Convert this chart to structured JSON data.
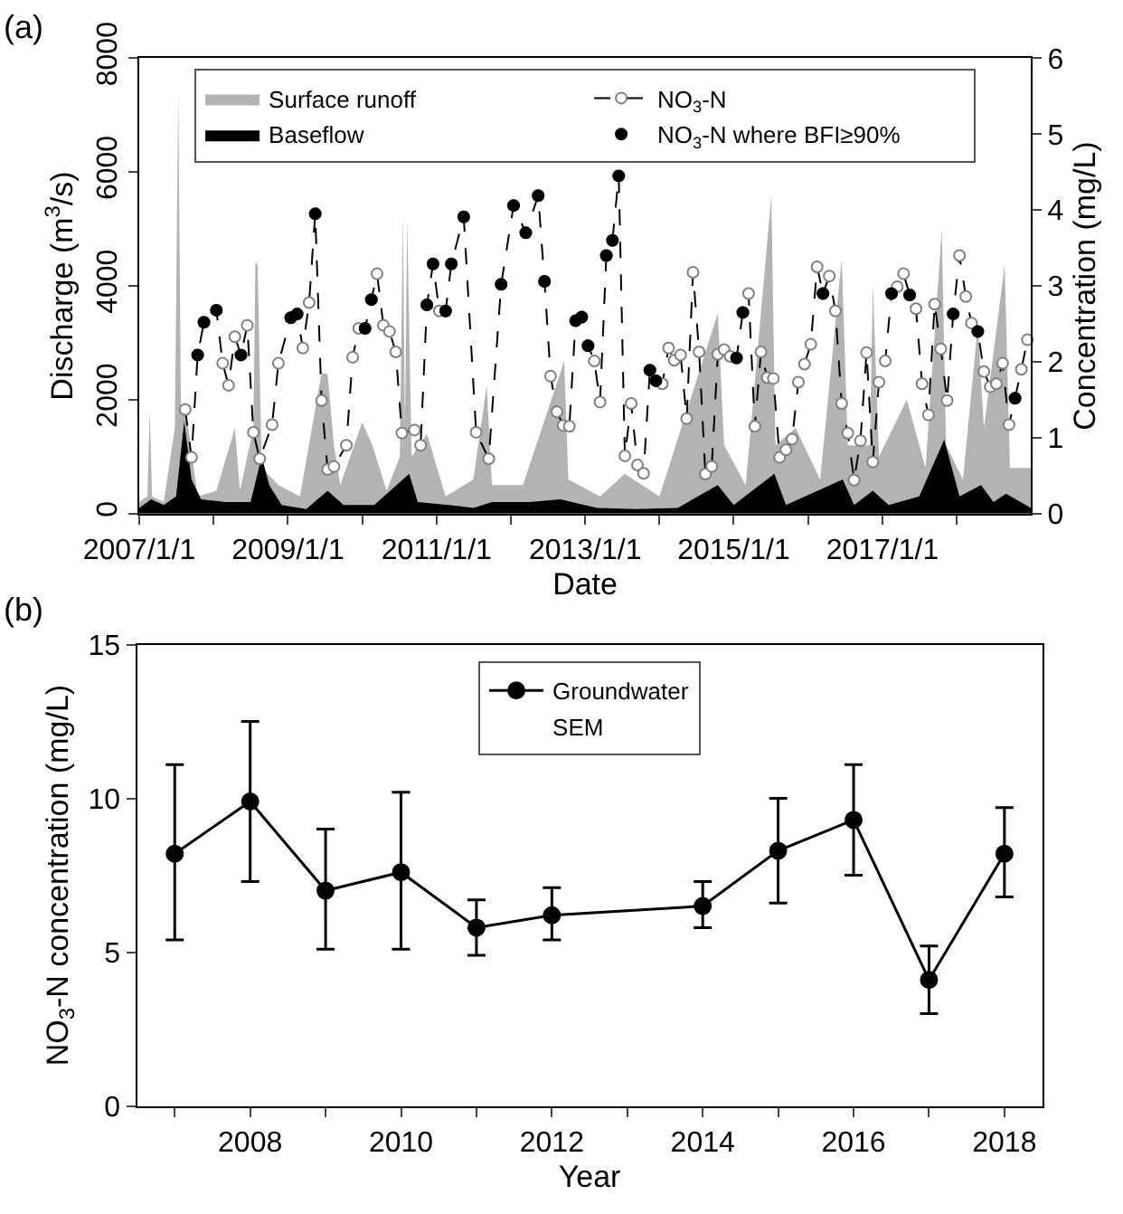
{
  "chart_data": [
    {
      "type": "area",
      "xlabel": "Date",
      "ylabel": "Discharge (m$^{3}$/s)",
      "y2label": "Concentration (mg/L)",
      "annotations": [
        "(a)"
      ],
      "legend": "top",
      "line_style": "dashed",
      "xlim": [
        "2007-01-01",
        "2019-01-01"
      ],
      "xticks": [
        {
          "value": "2007-01-01",
          "label": "2007/1/1"
        },
        {
          "value": "2008-01-01",
          "label": null
        },
        {
          "value": "2009-01-01",
          "label": "2009/1/1"
        },
        {
          "value": "2010-01-01",
          "label": null
        },
        {
          "value": "2011-01-01",
          "label": "2011/1/1"
        },
        {
          "value": "2012-01-01",
          "label": null
        },
        {
          "value": "2013-01-01",
          "label": "2013/1/1"
        },
        {
          "value": "2014-01-01",
          "label": null
        },
        {
          "value": "2015-01-01",
          "label": "2015/1/1"
        },
        {
          "value": "2016-01-01",
          "label": null
        },
        {
          "value": "2017-01-01",
          "label": "2017/1/1"
        },
        {
          "value": "2018-01-01",
          "label": null
        }
      ],
      "ylim": [
        0,
        8000
      ],
      "yticks": [
        0,
        2000,
        4000,
        6000,
        8000
      ],
      "y2lim": [
        0,
        6
      ],
      "y2ticks": [
        0,
        1,
        2,
        3,
        4,
        5,
        6
      ],
      "series": [
        {
          "name": "Surface runoff",
          "type": "area",
          "color": "#b3b3b3",
          "x": [
            "2007-01-01",
            "2007-02-10",
            "2007-02-22",
            "2007-03-05",
            "2007-05-01",
            "2007-06-25",
            "2007-07-12",
            "2007-07-25",
            "2007-08-22",
            "2007-10-15",
            "2008-01-15",
            "2008-04-15",
            "2008-05-10",
            "2008-07-15",
            "2008-07-25",
            "2008-08-05",
            "2008-08-25",
            "2008-11-15",
            "2009-03-01",
            "2009-06-15",
            "2009-07-15",
            "2009-08-15",
            "2009-09-15",
            "2010-01-01",
            "2010-02-20",
            "2010-05-01",
            "2010-07-05",
            "2010-07-20",
            "2010-07-30",
            "2010-08-10",
            "2010-09-01",
            "2010-11-15",
            "2011-02-15",
            "2011-07-01",
            "2011-09-05",
            "2011-10-01",
            "2012-03-01",
            "2012-09-20",
            "2012-10-10",
            "2013-03-15",
            "2013-07-15",
            "2014-01-01",
            "2014-10-15",
            "2014-11-15",
            "2015-03-01",
            "2015-07-05",
            "2015-07-25",
            "2015-11-01",
            "2016-03-01",
            "2016-06-15",
            "2016-07-15",
            "2016-11-01",
            "2016-11-15",
            "2016-12-15",
            "2017-05-01",
            "2017-08-01",
            "2017-10-20",
            "2017-11-10",
            "2018-02-01",
            "2018-04-15",
            "2018-05-15",
            "2018-08-25",
            "2018-09-20",
            "2019-01-01"
          ],
          "values": [
            200,
            300,
            1800,
            300,
            200,
            1500,
            7390,
            1800,
            1700,
            300,
            400,
            1500,
            400,
            1500,
            4420,
            4370,
            800,
            500,
            300,
            2470,
            2450,
            1200,
            500,
            1600,
            1200,
            400,
            1000,
            5220,
            1500,
            5160,
            1000,
            1400,
            300,
            600,
            2250,
            500,
            500,
            2680,
            600,
            300,
            700,
            300,
            3520,
            1200,
            500,
            5590,
            1200,
            1500,
            600,
            4480,
            1200,
            1200,
            4050,
            1000,
            2000,
            800,
            5000,
            1200,
            600,
            3300,
            1500,
            4370,
            800,
            800
          ]
        },
        {
          "name": "Baseflow",
          "type": "area",
          "color": "#000000",
          "x": [
            "2007-01-01",
            "2007-03-01",
            "2007-05-01",
            "2007-07-01",
            "2007-08-10",
            "2007-09-15",
            "2007-11-01",
            "2008-03-01",
            "2008-07-01",
            "2008-08-25",
            "2008-10-01",
            "2008-12-01",
            "2009-04-01",
            "2009-07-15",
            "2009-10-01",
            "2010-03-01",
            "2010-08-20",
            "2010-10-01",
            "2011-03-01",
            "2011-07-01",
            "2011-10-01",
            "2012-04-01",
            "2012-09-01",
            "2013-03-01",
            "2013-09-01",
            "2014-04-01",
            "2014-10-15",
            "2015-01-01",
            "2015-07-20",
            "2015-09-15",
            "2016-06-20",
            "2016-08-15",
            "2016-11-15",
            "2017-02-01",
            "2017-07-01",
            "2017-11-01",
            "2018-01-15",
            "2018-05-01",
            "2018-07-01",
            "2018-09-01",
            "2019-01-01"
          ],
          "values": [
            100,
            250,
            150,
            300,
            1620,
            600,
            250,
            200,
            200,
            1000,
            500,
            150,
            80,
            400,
            150,
            150,
            700,
            200,
            150,
            100,
            200,
            200,
            250,
            100,
            80,
            100,
            500,
            150,
            700,
            150,
            600,
            150,
            400,
            150,
            300,
            1300,
            300,
            500,
            200,
            350,
            100
          ]
        },
        {
          "name": "NO$_{3}$-N",
          "type": "line",
          "axis": "y2",
          "color": "#808080",
          "marker": "circle",
          "x": [
            "2007-08-15",
            "2007-09-15",
            "2007-10-15",
            "2007-11-15",
            "2008-01-15",
            "2008-02-15",
            "2008-03-15",
            "2008-04-15",
            "2008-05-15",
            "2008-06-15",
            "2008-07-15",
            "2008-08-15",
            "2008-10-15",
            "2008-11-15",
            "2009-01-15",
            "2009-02-15",
            "2009-03-15",
            "2009-04-15",
            "2009-05-15",
            "2009-06-15",
            "2009-07-15",
            "2009-08-15",
            "2009-10-15",
            "2009-11-15",
            "2009-12-15",
            "2010-01-15",
            "2010-02-15",
            "2010-03-15",
            "2010-04-15",
            "2010-05-15",
            "2010-06-15",
            "2010-07-15",
            "2010-09-15",
            "2010-10-15",
            "2010-11-15",
            "2010-12-15",
            "2011-01-15",
            "2011-02-15",
            "2011-03-15",
            "2011-05-15",
            "2011-07-15",
            "2011-09-15",
            "2011-11-15",
            "2012-01-15",
            "2012-03-15",
            "2012-05-15",
            "2012-06-15",
            "2012-07-15",
            "2012-08-15",
            "2012-09-15",
            "2012-10-15",
            "2012-11-15",
            "2012-12-15",
            "2013-01-15",
            "2013-02-15",
            "2013-03-15",
            "2013-04-15",
            "2013-05-15",
            "2013-06-15",
            "2013-07-15",
            "2013-08-15",
            "2013-09-15",
            "2013-10-15",
            "2013-11-15",
            "2013-12-15",
            "2014-01-15",
            "2014-02-15",
            "2014-03-15",
            "2014-04-15",
            "2014-05-15",
            "2014-06-15",
            "2014-07-15",
            "2014-08-15",
            "2014-09-15",
            "2014-10-15",
            "2014-11-15",
            "2014-12-15",
            "2015-01-15",
            "2015-02-15",
            "2015-03-15",
            "2015-04-15",
            "2015-05-15",
            "2015-06-15",
            "2015-07-15",
            "2015-08-15",
            "2015-09-15",
            "2015-10-15",
            "2015-11-15",
            "2015-12-15",
            "2016-01-15",
            "2016-02-15",
            "2016-03-15",
            "2016-04-15",
            "2016-05-15",
            "2016-06-15",
            "2016-07-15",
            "2016-08-15",
            "2016-09-15",
            "2016-10-15",
            "2016-11-15",
            "2016-12-15",
            "2017-01-15",
            "2017-02-15",
            "2017-03-15",
            "2017-04-15",
            "2017-05-15",
            "2017-06-15",
            "2017-07-15",
            "2017-08-15",
            "2017-09-15",
            "2017-10-15",
            "2017-11-15",
            "2017-12-15",
            "2018-01-15",
            "2018-02-15",
            "2018-03-15",
            "2018-04-15",
            "2018-05-15",
            "2018-06-15",
            "2018-07-15",
            "2018-08-15",
            "2018-09-15",
            "2018-10-15",
            "2018-11-15",
            "2018-12-15"
          ],
          "values": [
            1.37,
            0.74,
            2.09,
            2.52,
            2.68,
            1.98,
            1.69,
            2.33,
            2.09,
            2.48,
            1.07,
            0.72,
            1.17,
            1.98,
            2.58,
            2.63,
            2.18,
            2.78,
            3.95,
            1.49,
            0.58,
            0.62,
            0.9,
            2.06,
            2.44,
            2.44,
            2.82,
            3.16,
            2.48,
            2.4,
            2.13,
            1.06,
            1.1,
            0.9,
            2.75,
            3.29,
            2.67,
            2.67,
            3.29,
            3.91,
            1.07,
            0.72,
            3.02,
            4.06,
            3.7,
            4.19,
            3.06,
            1.81,
            1.34,
            1.16,
            1.15,
            2.54,
            2.59,
            2.21,
            2.01,
            1.47,
            3.4,
            3.6,
            4.45,
            0.76,
            1.45,
            0.64,
            0.53,
            1.89,
            1.75,
            1.71,
            2.18,
            2.02,
            2.09,
            1.25,
            3.18,
            2.13,
            0.52,
            0.62,
            2.1,
            2.16,
            2.07,
            2.05,
            2.65,
            2.9,
            1.15,
            2.13,
            1.79,
            1.78,
            0.74,
            0.84,
            0.98,
            1.73,
            1.97,
            2.23,
            3.25,
            2.9,
            3.13,
            2.67,
            1.45,
            1.06,
            0.44,
            0.96,
            2.12,
            0.68,
            1.73,
            2.01,
            2.9,
            2.99,
            3.16,
            2.88,
            2.7,
            1.71,
            1.3,
            2.76,
            2.17,
            1.49,
            2.63,
            3.4,
            2.86,
            2.51,
            2.4,
            1.87,
            1.67,
            1.71,
            1.98,
            1.17,
            1.52,
            1.9,
            2.29
          ]
        },
        {
          "name": "NO$_{3}$-N where BFI≥90%",
          "type": "scatter",
          "axis": "y2",
          "color": "#000000",
          "marker": "circle",
          "x": [
            "2007-10-15",
            "2007-11-15",
            "2008-01-15",
            "2008-05-15",
            "2009-01-15",
            "2009-02-15",
            "2009-05-15",
            "2010-01-15",
            "2010-02-15",
            "2010-11-15",
            "2010-12-15",
            "2011-02-15",
            "2011-03-15",
            "2011-05-15",
            "2011-11-15",
            "2012-01-15",
            "2012-03-15",
            "2012-05-15",
            "2012-06-15",
            "2012-11-15",
            "2012-12-15",
            "2013-01-15",
            "2013-04-15",
            "2013-05-15",
            "2013-06-15",
            "2013-11-15",
            "2013-12-15",
            "2015-01-15",
            "2015-02-15",
            "2016-03-15",
            "2017-02-15",
            "2017-05-15",
            "2017-12-15",
            "2018-04-15",
            "2018-10-15"
          ],
          "values": [
            2.09,
            2.52,
            2.68,
            2.09,
            2.58,
            2.63,
            3.95,
            2.44,
            2.82,
            2.75,
            3.29,
            2.67,
            3.29,
            3.91,
            3.02,
            4.06,
            3.7,
            4.19,
            3.06,
            2.54,
            2.59,
            2.21,
            3.4,
            3.6,
            4.45,
            1.89,
            1.75,
            2.05,
            2.65,
            2.9,
            2.9,
            2.88,
            2.63,
            2.4,
            1.52
          ]
        }
      ]
    },
    {
      "type": "line",
      "xlabel": "Year",
      "ylabel": "NO$_{3}$-N concentration (mg/L)",
      "annotations": [
        "(b)",
        "SEM"
      ],
      "legend": "top",
      "marker": "circle",
      "line_style": "solid",
      "xlim": [
        2006.5,
        2018.5
      ],
      "xticks": [
        {
          "value": 2007,
          "label": null
        },
        2008,
        {
          "value": 2009,
          "label": null
        },
        2010,
        {
          "value": 2011,
          "label": null
        },
        2012,
        {
          "value": 2013,
          "label": null
        },
        2014,
        {
          "value": 2015,
          "label": null
        },
        2016,
        {
          "value": 2017,
          "label": null
        },
        2018
      ],
      "ylim": [
        0,
        15
      ],
      "yticks": [
        0,
        5,
        10,
        15
      ],
      "series": [
        {
          "name": "Groundwater",
          "color": "#000000",
          "x": [
            2007,
            2008,
            2009,
            2010,
            2011,
            2012,
            2014,
            2015,
            2016,
            2017,
            2018
          ],
          "values": [
            8.2,
            9.9,
            7.0,
            7.6,
            5.8,
            6.2,
            6.5,
            8.3,
            9.3,
            4.1,
            8.2
          ],
          "errors": [
            [
              5.4,
              11.1
            ],
            [
              7.3,
              12.5
            ],
            [
              5.1,
              9.0
            ],
            [
              5.1,
              10.2
            ],
            [
              4.9,
              6.7
            ],
            [
              5.4,
              7.1
            ],
            [
              5.8,
              7.3
            ],
            [
              6.6,
              10.0
            ],
            [
              7.5,
              11.1
            ],
            [
              3.0,
              5.2
            ],
            [
              6.8,
              9.7
            ]
          ]
        }
      ]
    }
  ]
}
